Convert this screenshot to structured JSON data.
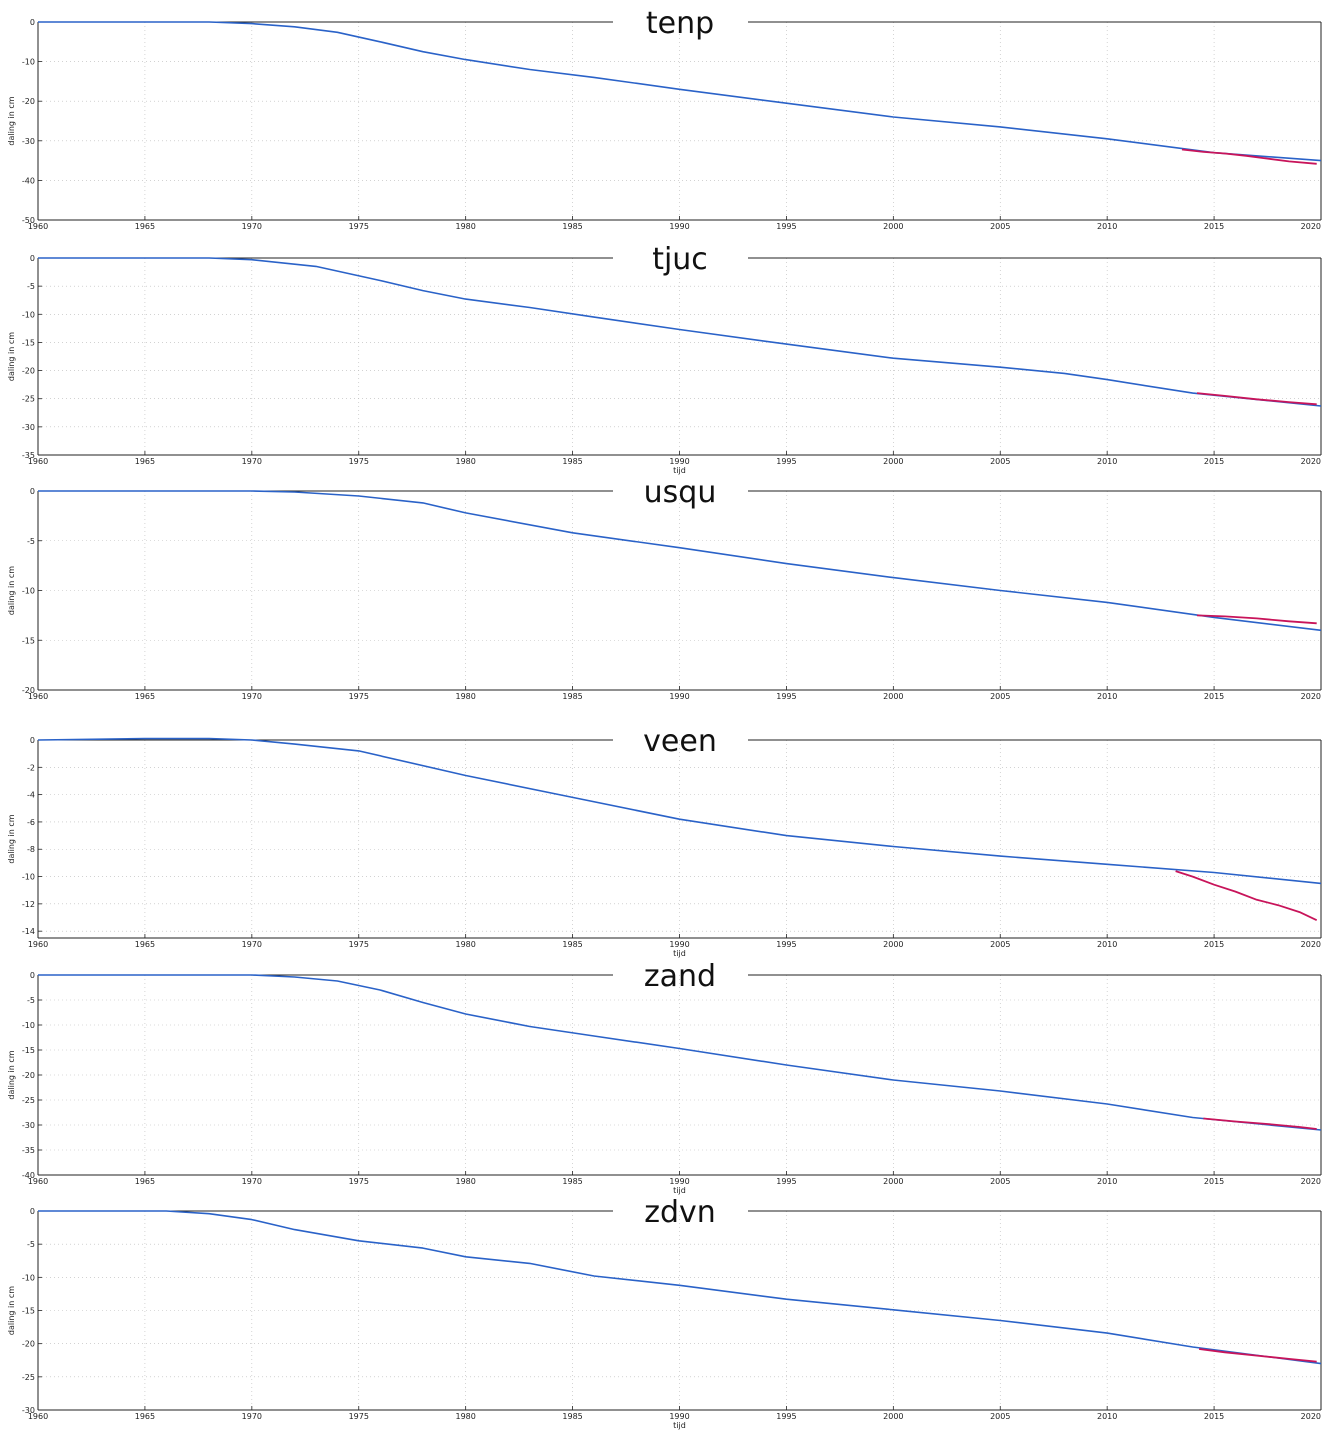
{
  "chart_data": [
    {
      "type": "line",
      "title": "tenp",
      "xlabel": "",
      "ylabel": "daling in cm",
      "xlim": [
        1960,
        2020
      ],
      "ylim": [
        -50,
        0
      ],
      "xticks": [
        1960,
        1965,
        1970,
        1975,
        1980,
        1985,
        1990,
        1995,
        2000,
        2005,
        2010,
        2015,
        2020
      ],
      "yticks": [
        0,
        -10,
        -20,
        -30,
        -40,
        -50
      ],
      "grid": true,
      "series": [
        {
          "color": "#2a62c8",
          "x": [
            1960,
            1968,
            1970,
            1972,
            1974,
            1976,
            1978,
            1980,
            1983,
            1986,
            1990,
            1995,
            2000,
            2005,
            2010,
            2015,
            2020
          ],
          "y": [
            0,
            0,
            -0.4,
            -1.2,
            -2.6,
            -5,
            -7.5,
            -9.5,
            -12,
            -14,
            -17,
            -20.5,
            -24,
            -26.5,
            -29.5,
            -33,
            -35
          ]
        },
        {
          "color": "#c8145a",
          "x": [
            2013.5,
            2014.5,
            2015.5,
            2016.5,
            2017.5,
            2018.5,
            2019.8
          ],
          "y": [
            -32.2,
            -32.8,
            -33.2,
            -33.8,
            -34.5,
            -35.2,
            -35.8
          ]
        }
      ]
    },
    {
      "type": "line",
      "title": "tjuc",
      "xlabel": "tijd",
      "ylabel": "daling in cm",
      "xlim": [
        1960,
        2020
      ],
      "ylim": [
        -35,
        0
      ],
      "xticks": [
        1960,
        1965,
        1970,
        1975,
        1980,
        1985,
        1990,
        1995,
        2000,
        2005,
        2010,
        2015,
        2020
      ],
      "yticks": [
        0,
        -5,
        -10,
        -15,
        -20,
        -25,
        -30,
        -35
      ],
      "grid": true,
      "series": [
        {
          "color": "#2a62c8",
          "x": [
            1960,
            1968,
            1970,
            1973,
            1976,
            1978,
            1980,
            1983,
            1986,
            1990,
            1995,
            2000,
            2005,
            2008,
            2010,
            2014,
            2020
          ],
          "y": [
            0,
            0,
            -0.3,
            -1.5,
            -4,
            -5.8,
            -7.3,
            -8.8,
            -10.5,
            -12.7,
            -15.3,
            -17.8,
            -19.4,
            -20.5,
            -21.6,
            -24,
            -26.3
          ]
        },
        {
          "color": "#c8145a",
          "x": [
            2014.2,
            2015.5,
            2017,
            2018.5,
            2019.8
          ],
          "y": [
            -24,
            -24.5,
            -25.1,
            -25.6,
            -26
          ]
        }
      ]
    },
    {
      "type": "line",
      "title": "usqu",
      "xlabel": "",
      "ylabel": "daling in cm",
      "xlim": [
        1960,
        2020
      ],
      "ylim": [
        -20,
        0
      ],
      "xticks": [
        1960,
        1965,
        1970,
        1975,
        1980,
        1985,
        1990,
        1995,
        2000,
        2005,
        2010,
        2015,
        2020
      ],
      "yticks": [
        0,
        -5,
        -10,
        -15,
        -20
      ],
      "grid": true,
      "series": [
        {
          "color": "#2a62c8",
          "x": [
            1960,
            1970,
            1972,
            1975,
            1978,
            1980,
            1985,
            1990,
            1995,
            2000,
            2005,
            2010,
            2015,
            2020
          ],
          "y": [
            0,
            0,
            -0.1,
            -0.5,
            -1.2,
            -2.2,
            -4.2,
            -5.7,
            -7.3,
            -8.7,
            -10,
            -11.2,
            -12.7,
            -14
          ]
        },
        {
          "color": "#c8145a",
          "x": [
            2014.2,
            2015.5,
            2017,
            2018.5,
            2019.8
          ],
          "y": [
            -12.5,
            -12.6,
            -12.8,
            -13.1,
            -13.3
          ]
        }
      ]
    },
    {
      "type": "line",
      "title": "veen",
      "xlabel": "tijd",
      "ylabel": "daling in cm",
      "xlim": [
        1960,
        2020
      ],
      "ylim": [
        -14.5,
        0
      ],
      "xticks": [
        1960,
        1965,
        1970,
        1975,
        1980,
        1985,
        1990,
        1995,
        2000,
        2005,
        2010,
        2015,
        2020
      ],
      "yticks": [
        0,
        -2,
        -4,
        -6,
        -8,
        -10,
        -12,
        -14
      ],
      "grid": true,
      "series": [
        {
          "color": "#2a62c8",
          "x": [
            1960,
            1965,
            1968,
            1970,
            1972,
            1975,
            1980,
            1985,
            1990,
            1995,
            2000,
            2005,
            2010,
            2015,
            2020
          ],
          "y": [
            0,
            0.1,
            0.1,
            0,
            -0.3,
            -0.8,
            -2.6,
            -4.2,
            -5.8,
            -7,
            -7.8,
            -8.5,
            -9.1,
            -9.7,
            -10.5
          ]
        },
        {
          "color": "#c8145a",
          "x": [
            2013.2,
            2014,
            2015,
            2016,
            2017,
            2018,
            2019,
            2019.8
          ],
          "y": [
            -9.6,
            -10,
            -10.6,
            -11.1,
            -11.7,
            -12.1,
            -12.6,
            -13.2
          ]
        }
      ]
    },
    {
      "type": "line",
      "title": "zand",
      "xlabel": "tijd",
      "ylabel": "daling in cm",
      "xlim": [
        1960,
        2020
      ],
      "ylim": [
        -40,
        0
      ],
      "xticks": [
        1960,
        1965,
        1970,
        1975,
        1980,
        1985,
        1990,
        1995,
        2000,
        2005,
        2010,
        2015,
        2020
      ],
      "yticks": [
        0,
        -5,
        -10,
        -15,
        -20,
        -25,
        -30,
        -35,
        -40
      ],
      "grid": true,
      "series": [
        {
          "color": "#2a62c8",
          "x": [
            1960,
            1970,
            1972,
            1974,
            1976,
            1978,
            1980,
            1983,
            1986,
            1990,
            1995,
            2000,
            2005,
            2010,
            2014,
            2020
          ],
          "y": [
            0,
            0,
            -0.4,
            -1.2,
            -3,
            -5.5,
            -7.8,
            -10.3,
            -12.2,
            -14.7,
            -18,
            -21,
            -23.2,
            -25.8,
            -28.5,
            -31
          ]
        },
        {
          "color": "#c8145a",
          "x": [
            2014.5,
            2016,
            2017.5,
            2019,
            2019.8
          ],
          "y": [
            -28.7,
            -29.3,
            -29.8,
            -30.4,
            -30.8
          ]
        }
      ]
    },
    {
      "type": "line",
      "title": "zdvn",
      "xlabel": "tijd",
      "ylabel": "daling in cm",
      "xlim": [
        1960,
        2020
      ],
      "ylim": [
        -30,
        0
      ],
      "xticks": [
        1960,
        1965,
        1970,
        1975,
        1980,
        1985,
        1990,
        1995,
        2000,
        2005,
        2010,
        2015,
        2020
      ],
      "yticks": [
        0,
        -5,
        -10,
        -15,
        -20,
        -25,
        -30
      ],
      "grid": true,
      "series": [
        {
          "color": "#2a62c8",
          "x": [
            1960,
            1966,
            1968,
            1970,
            1972,
            1975,
            1978,
            1980,
            1983,
            1986,
            1990,
            1995,
            2000,
            2005,
            2010,
            2014,
            2020
          ],
          "y": [
            0,
            0,
            -0.4,
            -1.3,
            -2.8,
            -4.5,
            -5.6,
            -6.9,
            -7.9,
            -9.8,
            -11.2,
            -13.3,
            -14.9,
            -16.5,
            -18.4,
            -20.5,
            -23
          ]
        },
        {
          "color": "#c8145a",
          "x": [
            2014.3,
            2015.5,
            2017,
            2018.5,
            2019.8
          ],
          "y": [
            -20.8,
            -21.3,
            -21.8,
            -22.3,
            -22.7
          ]
        }
      ]
    }
  ]
}
